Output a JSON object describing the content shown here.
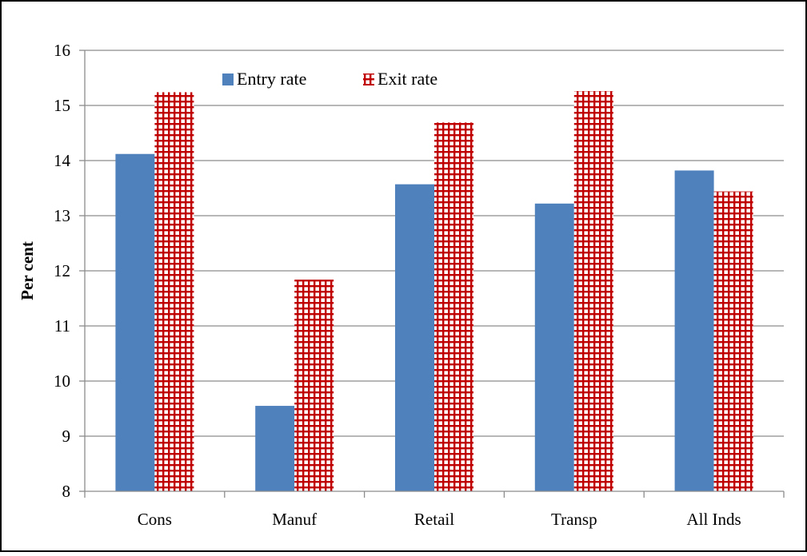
{
  "chart_data": {
    "type": "bar",
    "categories": [
      "Cons",
      "Manuf",
      "Retail",
      "Transp",
      "All Inds"
    ],
    "series": [
      {
        "name": "Entry rate",
        "color": "#4f81bd",
        "pattern": "solid",
        "values": [
          14.12,
          9.55,
          13.57,
          13.22,
          13.82
        ]
      },
      {
        "name": "Exit rate",
        "color": "#c00000",
        "pattern": "grid",
        "values": [
          15.24,
          11.84,
          14.69,
          15.26,
          13.44
        ]
      }
    ],
    "title": "",
    "xlabel": "",
    "ylabel": "Per cent",
    "ylim": [
      8,
      16
    ],
    "yticks": [
      8,
      9,
      10,
      11,
      12,
      13,
      14,
      15,
      16
    ],
    "grid": true,
    "legend": "top-left"
  }
}
